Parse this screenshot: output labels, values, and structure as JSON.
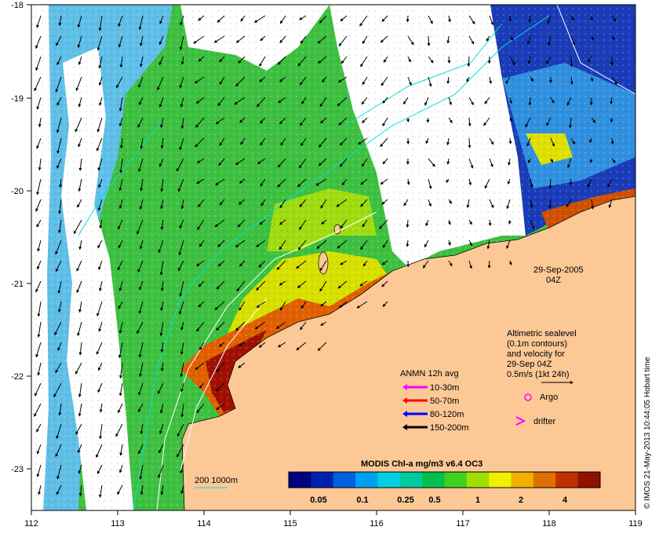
{
  "axes": {
    "lon_ticks": [
      "112",
      "113",
      "114",
      "115",
      "116",
      "117",
      "118",
      "119"
    ],
    "lat_ticks": [
      "-18",
      "-19",
      "-20",
      "-21",
      "-22",
      "-23"
    ]
  },
  "date_label": "29-Sep-2005",
  "time_label": "04Z",
  "sealevel_note": [
    "Altimetric sealevel",
    "(0.1m contours)",
    "and velocity for",
    "29-Sep 04Z",
    "0.5m/s (1kt 24h)"
  ],
  "anmn": {
    "title": "ANMN 12h avg",
    "items": [
      {
        "label": "10-30m",
        "color": "#ff00ff"
      },
      {
        "label": "50-70m",
        "color": "#ff0000"
      },
      {
        "label": "80-120m",
        "color": "#0000ff"
      },
      {
        "label": "150-200m",
        "color": "#000000"
      }
    ]
  },
  "argo_label": "Argo",
  "drifter_label": "drifter",
  "isobath_label": "200  1000m",
  "colorbar": {
    "title": "MODIS Chl-a mg/m3 v6.4 OC3",
    "tick_labels": [
      "0.05",
      "0.1",
      "0.25",
      "0.5",
      "1",
      "2",
      "4"
    ],
    "colors": [
      "#000080",
      "#0020b0",
      "#0060e0",
      "#00a0f0",
      "#00d0e0",
      "#00c8a0",
      "#00c050",
      "#40d020",
      "#a0e000",
      "#f0f000",
      "#f0b000",
      "#e07000",
      "#c03000",
      "#901000"
    ]
  },
  "credit": "© IMOS 21-May-2013 10:44:05 Hobart time"
}
